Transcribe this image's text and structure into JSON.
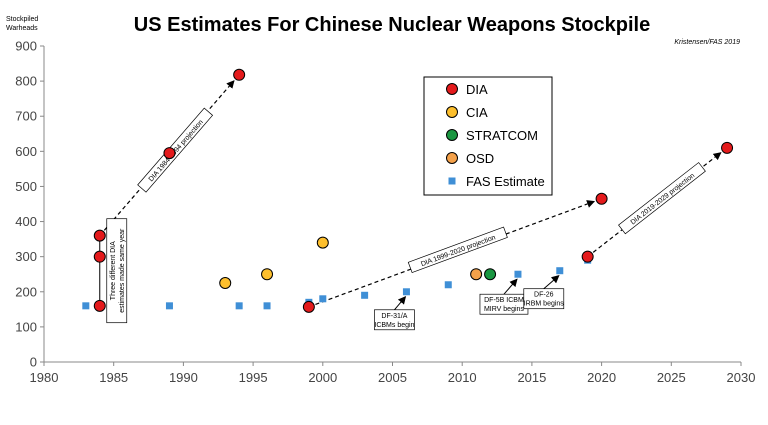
{
  "chart_data": {
    "type": "scatter",
    "title": "US Estimates For Chinese Nuclear Weapons Stockpile",
    "credit": "Kristensen/FAS 2019",
    "ylabel_lines": [
      "Stockpiled",
      "Warheads"
    ],
    "xlim": [
      1980,
      2030
    ],
    "ylim": [
      0,
      900
    ],
    "xticks": [
      1980,
      1985,
      1990,
      1995,
      2000,
      2005,
      2010,
      2015,
      2020,
      2025,
      2030
    ],
    "yticks": [
      0,
      100,
      200,
      300,
      400,
      500,
      600,
      700,
      800,
      900
    ],
    "legend_position": "top-center",
    "series": [
      {
        "name": "DIA",
        "color": "#e41a1c",
        "marker": "circle",
        "points": [
          {
            "x": 1984,
            "y": 360
          },
          {
            "x": 1984,
            "y": 300
          },
          {
            "x": 1984,
            "y": 160
          },
          {
            "x": 1989,
            "y": 595
          },
          {
            "x": 1994,
            "y": 818
          },
          {
            "x": 1999,
            "y": 157
          },
          {
            "x": 2019,
            "y": 300
          },
          {
            "x": 2020,
            "y": 465
          },
          {
            "x": 2029,
            "y": 610
          }
        ]
      },
      {
        "name": "CIA",
        "color": "#fdbf2d",
        "marker": "circle",
        "points": [
          {
            "x": 1993,
            "y": 225
          },
          {
            "x": 1996,
            "y": 250
          },
          {
            "x": 2000,
            "y": 340
          }
        ]
      },
      {
        "name": "STRATCOM",
        "color": "#1a9641",
        "marker": "circle",
        "points": [
          {
            "x": 2012,
            "y": 250
          }
        ]
      },
      {
        "name": "OSD",
        "color": "#f4a14a",
        "marker": "circle",
        "points": [
          {
            "x": 2011,
            "y": 250
          }
        ]
      },
      {
        "name": "FAS Estimate",
        "color": "#3f8fd6",
        "marker": "square",
        "points": [
          {
            "x": 1983,
            "y": 160
          },
          {
            "x": 1989,
            "y": 160
          },
          {
            "x": 1994,
            "y": 160
          },
          {
            "x": 1996,
            "y": 160
          },
          {
            "x": 1999,
            "y": 170
          },
          {
            "x": 2000,
            "y": 180
          },
          {
            "x": 2003,
            "y": 190
          },
          {
            "x": 2006,
            "y": 200
          },
          {
            "x": 2009,
            "y": 220
          },
          {
            "x": 2014,
            "y": 250
          },
          {
            "x": 2017,
            "y": 260
          },
          {
            "x": 2019,
            "y": 290
          }
        ]
      }
    ],
    "projections": [
      {
        "label": "DIA 1984-1994 projection",
        "from": {
          "x": 1984,
          "y": 360
        },
        "to": {
          "x": 1994,
          "y": 818
        }
      },
      {
        "label": "DIA 1999-2020 projection",
        "from": {
          "x": 1999,
          "y": 157
        },
        "to": {
          "x": 2020,
          "y": 465
        }
      },
      {
        "label": "DIA 2019-2029 projection",
        "from": {
          "x": 2019,
          "y": 300
        },
        "to": {
          "x": 2029,
          "y": 610
        }
      }
    ],
    "annotations": [
      {
        "id": "three-dia",
        "lines": [
          "Three different DIA",
          "estimates made same year"
        ]
      },
      {
        "id": "df31a",
        "lines": [
          "DF-31/A",
          "ICBMs begin"
        ],
        "target": {
          "x": 2006,
          "y": 200
        }
      },
      {
        "id": "df5b",
        "lines": [
          "DF-5B ICBM",
          "MIRV begins"
        ],
        "target": {
          "x": 2014,
          "y": 250
        }
      },
      {
        "id": "df26",
        "lines": [
          "DF-26",
          "IRBM begins"
        ],
        "target": {
          "x": 2017,
          "y": 260
        }
      }
    ]
  }
}
